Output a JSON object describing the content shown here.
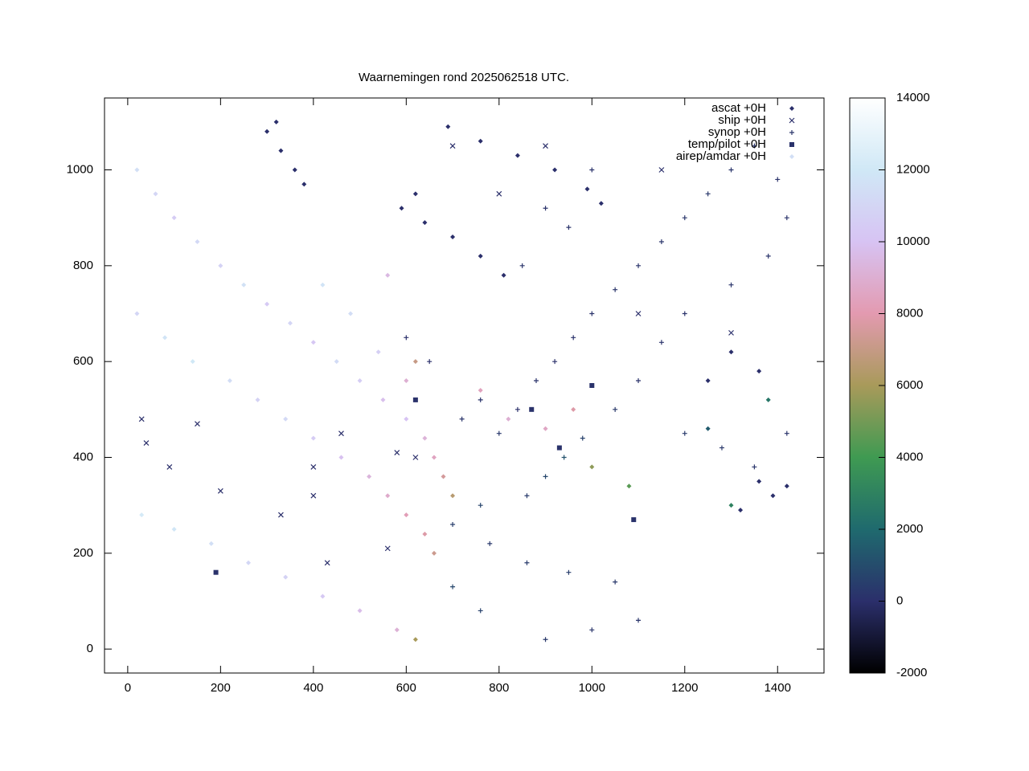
{
  "chart_data": {
    "type": "scatter",
    "title": "Waarnemingen rond 2025062518 UTC.",
    "xlim": [
      -50,
      1500
    ],
    "ylim": [
      -50,
      1150
    ],
    "xticks": [
      0,
      200,
      400,
      600,
      800,
      1000,
      1200,
      1400
    ],
    "yticks": [
      0,
      200,
      400,
      600,
      800,
      1000
    ],
    "cbrange": [
      -2000,
      14000
    ],
    "cbticks": [
      -2000,
      0,
      2000,
      4000,
      6000,
      8000,
      10000,
      12000,
      14000
    ],
    "colormap": [
      "#000000",
      "#2b2f6b",
      "#1f6a6e",
      "#3f9a52",
      "#a89a5a",
      "#e39ab0",
      "#d7c3f3",
      "#d0e8f6",
      "#ffffff"
    ],
    "legend": "top-right",
    "series": [
      {
        "name": "ascat +0H",
        "marker": "diamond",
        "x": [
          300,
          330,
          360,
          380,
          320,
          590,
          640,
          700,
          760,
          810,
          620,
          690,
          760,
          840,
          920,
          990,
          1020,
          1300,
          1360,
          1250,
          1320,
          1360,
          1390,
          1420
        ],
        "y": [
          1080,
          1040,
          1000,
          970,
          1100,
          920,
          890,
          860,
          820,
          780,
          950,
          1090,
          1060,
          1030,
          1000,
          960,
          930,
          620,
          580,
          560,
          290,
          350,
          320,
          340
        ],
        "z": [
          0,
          0,
          0,
          0,
          0,
          0,
          0,
          0,
          0,
          0,
          0,
          0,
          0,
          0,
          0,
          0,
          0,
          0,
          0,
          0,
          0,
          0,
          0,
          0
        ]
      },
      {
        "name": "ship +0H",
        "marker": "cross",
        "x": [
          30,
          40,
          200,
          330,
          400,
          460,
          580,
          620,
          560,
          430,
          400,
          90,
          150,
          700,
          900,
          800,
          1150,
          1300,
          1100
        ],
        "y": [
          480,
          430,
          330,
          280,
          380,
          450,
          410,
          400,
          210,
          180,
          320,
          380,
          470,
          1050,
          1050,
          950,
          1000,
          660,
          700
        ],
        "z": [
          0,
          0,
          0,
          0,
          0,
          0,
          0,
          0,
          0,
          0,
          0,
          0,
          0,
          0,
          0,
          0,
          0,
          0,
          0
        ]
      },
      {
        "name": "synop +0H",
        "marker": "plus",
        "x": [
          720,
          760,
          800,
          840,
          880,
          920,
          960,
          1000,
          1050,
          1100,
          1150,
          1200,
          1250,
          1300,
          1350,
          1400,
          1420,
          1380,
          1300,
          1200,
          1150,
          1100,
          1050,
          980,
          940,
          900,
          860,
          760,
          700,
          780,
          860,
          950,
          1050,
          1100,
          1000,
          900,
          760,
          700,
          1200,
          1280,
          1350,
          1420,
          650,
          600,
          1000,
          900,
          850,
          950
        ],
        "y": [
          480,
          520,
          450,
          500,
          560,
          600,
          650,
          700,
          750,
          800,
          850,
          900,
          950,
          1000,
          1050,
          980,
          900,
          820,
          760,
          700,
          640,
          560,
          500,
          440,
          400,
          360,
          320,
          300,
          260,
          220,
          180,
          160,
          140,
          60,
          40,
          20,
          80,
          130,
          450,
          420,
          380,
          450,
          600,
          650,
          1000,
          920,
          800,
          880
        ],
        "z": [
          200,
          150,
          300,
          50,
          120,
          80,
          100,
          150,
          200,
          180,
          220,
          250,
          300,
          200,
          150,
          100,
          120,
          160,
          180,
          150,
          120,
          140,
          300,
          600,
          1200,
          800,
          400,
          700,
          500,
          300,
          400,
          500,
          300,
          200,
          250,
          300,
          600,
          800,
          400,
          300,
          200,
          150,
          50,
          60,
          100,
          150,
          200,
          120
        ]
      },
      {
        "name": "temp/pilot +0H",
        "marker": "square",
        "x": [
          190,
          1090,
          930,
          870,
          1000,
          620
        ],
        "y": [
          160,
          270,
          420,
          500,
          550,
          520
        ],
        "z": [
          100,
          100,
          100,
          100,
          100,
          100
        ]
      },
      {
        "name": "airep/amdar +0H",
        "marker": "diamond",
        "x": [
          20,
          60,
          100,
          150,
          200,
          250,
          300,
          350,
          400,
          450,
          500,
          550,
          600,
          640,
          660,
          680,
          700,
          20,
          80,
          140,
          220,
          280,
          340,
          400,
          460,
          520,
          560,
          600,
          640,
          660,
          30,
          100,
          180,
          260,
          340,
          420,
          500,
          580,
          620,
          540,
          480,
          420,
          560,
          600,
          620,
          760,
          820,
          900,
          960,
          1000,
          1080,
          1300,
          1380,
          1250
        ],
        "y": [
          1000,
          950,
          900,
          850,
          800,
          760,
          720,
          680,
          640,
          600,
          560,
          520,
          480,
          440,
          400,
          360,
          320,
          700,
          650,
          600,
          560,
          520,
          480,
          440,
          400,
          360,
          320,
          280,
          240,
          200,
          280,
          250,
          220,
          180,
          150,
          110,
          80,
          40,
          20,
          620,
          700,
          760,
          780,
          560,
          600,
          540,
          480,
          460,
          500,
          380,
          340,
          300,
          520,
          460
        ],
        "z": [
          11500,
          11000,
          10500,
          11200,
          10800,
          11600,
          10400,
          11000,
          10200,
          11300,
          10600,
          9800,
          10000,
          9200,
          8500,
          7500,
          6500,
          11000,
          11800,
          12000,
          11400,
          10800,
          11200,
          10500,
          9900,
          9300,
          8800,
          8200,
          7800,
          7200,
          12200,
          11900,
          11500,
          11100,
          10800,
          10300,
          9700,
          9100,
          6000,
          10700,
          11400,
          11800,
          9500,
          9000,
          7000,
          8400,
          9000,
          8600,
          7800,
          5500,
          4500,
          3000,
          2500,
          1500
        ]
      }
    ]
  }
}
